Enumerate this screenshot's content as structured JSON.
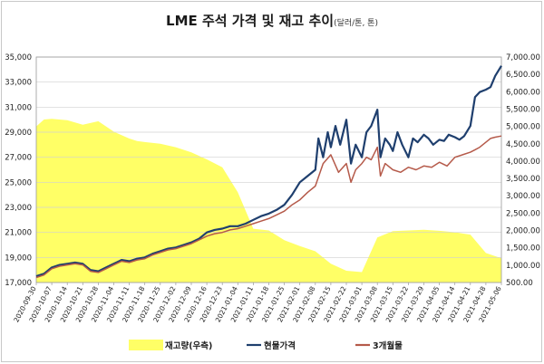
{
  "chart_data": {
    "type": "line",
    "title": "LME 주석 가격 및 재고 추이",
    "subtitle": "(달러/톤, 톤)",
    "y_left": {
      "ticks": [
        "17,000",
        "19,000",
        "21,000",
        "23,000",
        "25,000",
        "27,000",
        "29,000",
        "31,000",
        "33,000",
        "35,000"
      ],
      "min": 17000,
      "max": 35000
    },
    "y_right": {
      "ticks": [
        "500.00",
        "1,000.00",
        "1,500.00",
        "2,000.00",
        "2,500.00",
        "3,000.00",
        "3,500.00",
        "4,000.00",
        "4,500.00",
        "5,000.00",
        "5,500.00",
        "6,000.00",
        "6,500.00",
        "7,000.00"
      ],
      "min": 500,
      "max": 7000
    },
    "x_ticks": [
      "2020-09-30",
      "2020-10-07",
      "2020-10-14",
      "2020-10-21",
      "2020-10-28",
      "2020-11-04",
      "2020-11-11",
      "2020-11-18",
      "2020-11-25",
      "2020-12-02",
      "2020-12-09",
      "2020-12-16",
      "2020-12-23",
      "2021-01-04",
      "2021-01-11",
      "2021-01-18",
      "2021-01-25",
      "2021-02-01",
      "2021-02-08",
      "2021-02-15",
      "2021-02-22",
      "2021-03-01",
      "2021-03-08",
      "2021-03-15",
      "2021-03-22",
      "2021-03-29",
      "2021-04-05",
      "2021-04-14",
      "2021-04-21",
      "2021-04-28",
      "2021-05-06"
    ],
    "series": [
      {
        "name": "재고량(우측)",
        "axis": "right",
        "kind": "area",
        "color": "#ffff66",
        "x": [
          0,
          0.5,
          1,
          2,
          3,
          4,
          5,
          6,
          6.5,
          7,
          8,
          9,
          10,
          11,
          12,
          13,
          14,
          15,
          16,
          17,
          18,
          19,
          20,
          21,
          22,
          23,
          24,
          25,
          26,
          27,
          28,
          29,
          30
        ],
        "values": [
          5000,
          5200,
          5220,
          5180,
          5050,
          5150,
          4850,
          4650,
          4580,
          4550,
          4500,
          4400,
          4250,
          4050,
          3820,
          3100,
          2050,
          2000,
          1720,
          1550,
          1400,
          1040,
          840,
          800,
          1800,
          1980,
          2000,
          2020,
          1990,
          1950,
          1880,
          1350,
          1200
        ]
      },
      {
        "name": "현물가격",
        "axis": "left",
        "kind": "line",
        "color": "#1f3f6e",
        "x": [
          0,
          0.5,
          1,
          1.5,
          2,
          2.5,
          3,
          3.5,
          4,
          4.5,
          5,
          5.5,
          6,
          6.5,
          7,
          7.5,
          8,
          8.5,
          9,
          9.5,
          10,
          10.5,
          11,
          11.5,
          12,
          12.5,
          13,
          13.5,
          14,
          14.5,
          15,
          15.5,
          16,
          16.5,
          17,
          17.5,
          18,
          18.2,
          18.5,
          18.8,
          19,
          19.3,
          19.6,
          20,
          20.3,
          20.6,
          21,
          21.3,
          21.6,
          22,
          22.2,
          22.5,
          22.8,
          23,
          23.3,
          23.6,
          24,
          24.3,
          24.6,
          25,
          25.3,
          25.6,
          26,
          26.3,
          26.6,
          27,
          27.3,
          27.6,
          28,
          28.3,
          28.6,
          29,
          29.3,
          29.6,
          30
        ],
        "values": [
          17500,
          17700,
          18200,
          18400,
          18500,
          18600,
          18500,
          18000,
          17900,
          18200,
          18500,
          18800,
          18700,
          18900,
          19000,
          19300,
          19500,
          19700,
          19800,
          20000,
          20200,
          20500,
          21000,
          21200,
          21300,
          21500,
          21500,
          21700,
          22000,
          22300,
          22500,
          22800,
          23200,
          24000,
          25000,
          25500,
          26000,
          28500,
          27000,
          29000,
          27800,
          29500,
          28000,
          30000,
          26500,
          28000,
          27000,
          29000,
          29500,
          30800,
          27000,
          28500,
          28000,
          27500,
          29000,
          28000,
          27000,
          28500,
          28200,
          28800,
          28500,
          28000,
          28400,
          28300,
          28800,
          28600,
          28400,
          28700,
          29500,
          31800,
          32200,
          32400,
          32600,
          33500,
          34300
        ]
      },
      {
        "name": "3개월물",
        "axis": "left",
        "kind": "line",
        "color": "#b55a4a",
        "x": [
          0,
          0.5,
          1,
          1.5,
          2,
          2.5,
          3,
          3.5,
          4,
          4.5,
          5,
          5.5,
          6,
          6.5,
          7,
          7.5,
          8,
          8.5,
          9,
          9.5,
          10,
          10.5,
          11,
          11.5,
          12,
          12.5,
          13,
          13.5,
          14,
          14.5,
          15,
          15.5,
          16,
          16.5,
          17,
          17.5,
          18,
          18.5,
          19,
          19.5,
          20,
          20.3,
          20.6,
          21,
          21.3,
          21.6,
          22,
          22.2,
          22.5,
          23,
          23.5,
          24,
          24.5,
          25,
          25.5,
          26,
          26.5,
          27,
          27.5,
          28,
          28.3,
          28.6,
          29,
          29.3,
          29.6,
          30
        ],
        "values": [
          17400,
          17600,
          18100,
          18300,
          18400,
          18500,
          18400,
          17900,
          17800,
          18100,
          18400,
          18700,
          18600,
          18800,
          18900,
          19200,
          19400,
          19600,
          19700,
          19900,
          20100,
          20400,
          20700,
          20900,
          21000,
          21200,
          21300,
          21500,
          21700,
          21900,
          22100,
          22400,
          22700,
          23200,
          23600,
          24200,
          24700,
          26500,
          27200,
          25800,
          26500,
          25000,
          26000,
          26500,
          27000,
          26800,
          27800,
          25500,
          26500,
          26000,
          25800,
          26200,
          26000,
          26300,
          26200,
          26600,
          26300,
          27000,
          27200,
          27400,
          27600,
          27800,
          28200,
          28500,
          28600,
          28700
        ]
      }
    ],
    "legend_position": "bottom",
    "grid": true
  }
}
